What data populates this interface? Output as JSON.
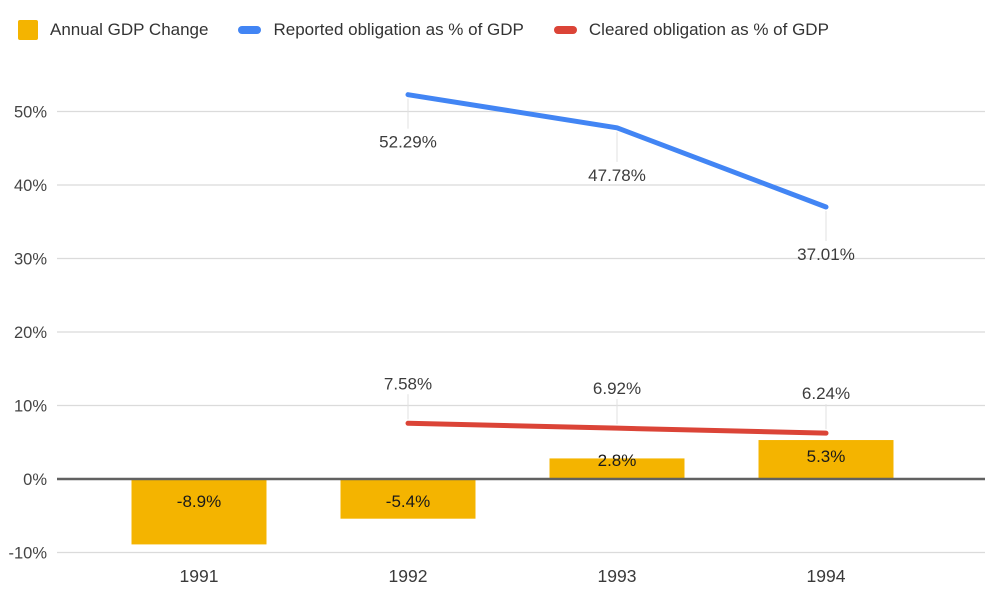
{
  "legend": [
    {
      "label": "Annual GDP Change",
      "color": "#F4B400",
      "swatch": "square"
    },
    {
      "label": "Reported obligation as % of GDP",
      "color": "#4285F4",
      "swatch": "line"
    },
    {
      "label": "Cleared obligation as % of GDP",
      "color": "#DB4437",
      "swatch": "line"
    }
  ],
  "chart_data": {
    "type": "combo",
    "categories": [
      "1991",
      "1992",
      "1993",
      "1994"
    ],
    "series": [
      {
        "name": "Annual GDP Change",
        "type": "bar",
        "color": "#F4B400",
        "values": [
          -8.9,
          -5.4,
          2.8,
          5.3
        ],
        "labels": [
          "-8.9%",
          "-5.4%",
          "2.8%",
          "5.3%"
        ]
      },
      {
        "name": "Reported obligation as % of GDP",
        "type": "line",
        "color": "#4285F4",
        "annotation_side": "below",
        "values": [
          null,
          52.29,
          47.78,
          37.01
        ],
        "labels": [
          null,
          "52.29%",
          "47.78%",
          "37.01%"
        ]
      },
      {
        "name": "Cleared obligation as % of GDP",
        "type": "line",
        "color": "#DB4437",
        "annotation_side": "above",
        "values": [
          null,
          7.58,
          6.92,
          6.24
        ],
        "labels": [
          null,
          "7.58%",
          "6.92%",
          "6.24%"
        ]
      }
    ],
    "y_axis": {
      "tick_labels": [
        "50%",
        "40%",
        "30%",
        "20%",
        "10%",
        "0%",
        "-10%"
      ],
      "tick_values": [
        50,
        40,
        30,
        20,
        10,
        0,
        -10
      ],
      "min": -10,
      "max": 55
    },
    "grid": true,
    "legend_position": "top",
    "title": "",
    "xlabel": "",
    "ylabel": ""
  },
  "colors": {
    "background": "#FFFFFF",
    "gridline": "#DBDBDB",
    "zero_axis": "#616161",
    "leader_line": "#E0E0E0",
    "annotation_text": "#3C3C3C",
    "bar_label_text": "#1A1A1A",
    "axis_tick_text": "#444444",
    "category_text": "#3A3A3A"
  }
}
